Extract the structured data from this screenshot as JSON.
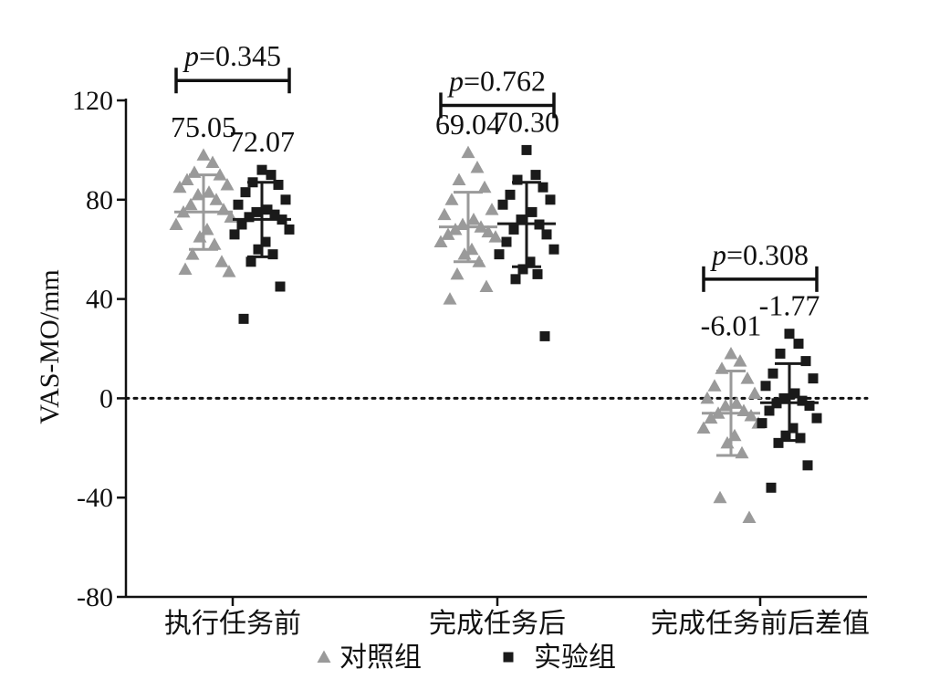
{
  "chart_data": {
    "type": "scatter",
    "ylabel": "VAS-MO/mm",
    "ylim": [
      -80,
      120
    ],
    "yticks": [
      -80,
      -40,
      0,
      40,
      80,
      120
    ],
    "reference_line": 0,
    "categories": [
      "执行任务前",
      "完成任务后",
      "完成任务前后差值"
    ],
    "legend": {
      "position": "bottom",
      "entries": [
        "对照组",
        "实验组"
      ]
    },
    "series": [
      {
        "name": "对照组",
        "marker": "triangle",
        "color": "#9a9a9a",
        "groups": [
          {
            "mean": 75.05,
            "mean_label": "75.05",
            "sd_low": 60,
            "sd_high": 90,
            "points": [
              98,
              95,
              91,
              90,
              88,
              86,
              85,
              83,
              82,
              80,
              78,
              76,
              75,
              73,
              70,
              68,
              65,
              62,
              58,
              55,
              52,
              51
            ]
          },
          {
            "mean": 69.04,
            "mean_label": "69.04",
            "sd_low": 55,
            "sd_high": 83,
            "points": [
              99,
              93,
              88,
              85,
              80,
              76,
              74,
              72,
              70,
              69,
              68,
              67,
              66,
              65,
              63,
              60,
              58,
              55,
              50,
              45,
              40
            ]
          },
          {
            "mean": -6.01,
            "mean_label": "-6.01",
            "sd_low": -23,
            "sd_high": 11,
            "points": [
              18,
              15,
              12,
              8,
              5,
              2,
              0,
              -2,
              -3,
              -5,
              -6,
              -7,
              -8,
              -10,
              -12,
              -15,
              -18,
              -22,
              -40,
              -48
            ]
          }
        ]
      },
      {
        "name": "实验组",
        "marker": "square",
        "color": "#1a1a1a",
        "groups": [
          {
            "mean": 72.07,
            "mean_label": "72.07",
            "sd_low": 57,
            "sd_high": 87,
            "points": [
              92,
              90,
              87,
              86,
              83,
              80,
              78,
              76,
              75,
              74,
              73,
              72,
              70,
              68,
              66,
              63,
              60,
              58,
              55,
              45,
              32
            ]
          },
          {
            "mean": 70.3,
            "mean_label": "70.30",
            "sd_low": 53,
            "sd_high": 87,
            "points": [
              100,
              90,
              88,
              85,
              82,
              80,
              78,
              75,
              72,
              70,
              68,
              66,
              63,
              60,
              58,
              55,
              52,
              50,
              48,
              25
            ]
          },
          {
            "mean": -1.77,
            "mean_label": "-1.77",
            "sd_low": -17,
            "sd_high": 14,
            "points": [
              26,
              22,
              18,
              15,
              10,
              8,
              5,
              2,
              0,
              -1,
              -2,
              -3,
              -5,
              -8,
              -10,
              -12,
              -15,
              -16,
              -18,
              -27,
              -36
            ]
          }
        ]
      }
    ],
    "comparisons": [
      {
        "category_index": 0,
        "label_italic": "p",
        "label_rest": "=0.345",
        "y": 128
      },
      {
        "category_index": 1,
        "label_italic": "p",
        "label_rest": "=0.762",
        "y": 118
      },
      {
        "category_index": 2,
        "label_italic": "p",
        "label_rest": "=0.308",
        "y": 48
      }
    ]
  }
}
